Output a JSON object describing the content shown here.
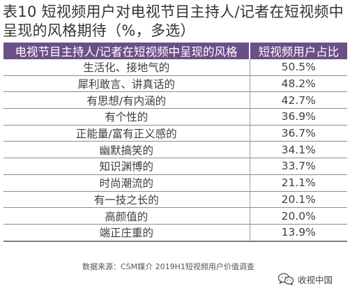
{
  "title": "表10  短视频用户对电视节目主持人/记者在短视频中呈现的风格期待（%，多选）",
  "table": {
    "headers": [
      "电视节目主持人/记者在短视频中呈现的风格",
      "短视频用户占比"
    ],
    "rows": [
      {
        "style": "生活化、接地气的",
        "share": "50.5%"
      },
      {
        "style": "犀利敢言、讲真话的",
        "share": "48.2%"
      },
      {
        "style": "有思想/有内涵的",
        "share": "42.7%"
      },
      {
        "style": "有个性的",
        "share": "36.9%"
      },
      {
        "style": "正能量/富有正义感的",
        "share": "36.7%"
      },
      {
        "style": "幽默搞笑的",
        "share": "34.1%"
      },
      {
        "style": "知识渊博的",
        "share": "33.7%"
      },
      {
        "style": "时尚潮流的",
        "share": "21.1%"
      },
      {
        "style": "有一技之长的",
        "share": "20.1%"
      },
      {
        "style": "高颜值的",
        "share": "20.0%"
      },
      {
        "style": "端正庄重的",
        "share": "13.9%"
      }
    ]
  },
  "source": "数据来源：CSM媒介  2019H1短视频用户价值调查",
  "watermark": {
    "icon": "wechat-icon",
    "label": "收视中国"
  }
}
